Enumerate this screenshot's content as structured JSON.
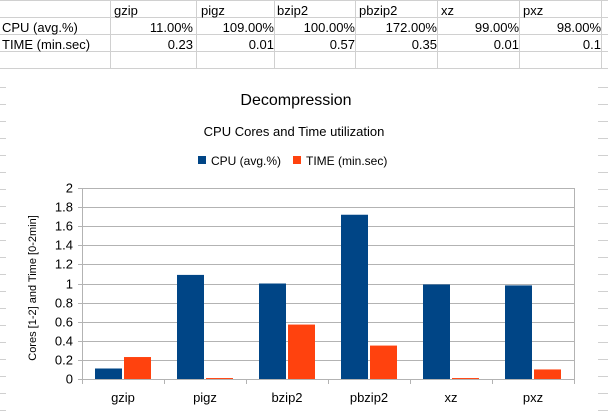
{
  "table": {
    "columns": [
      "gzip",
      "pigz",
      "bzip2",
      "pbzip2",
      "xz",
      "pxz"
    ],
    "rows": [
      {
        "label": "CPU (avg.%)",
        "values": [
          "11.00%",
          "109.00%",
          "100.00%",
          "172.00%",
          "99.00%",
          "98.00%"
        ]
      },
      {
        "label": "TIME (min.sec)",
        "values": [
          "0.23",
          "0.01",
          "0.57",
          "0.35",
          "0.01",
          "0.1"
        ]
      }
    ]
  },
  "chart_data": {
    "type": "bar",
    "title": "Decompression",
    "subtitle": "CPU Cores and Time utilization",
    "ylabel": "Cores [1-2] and Time [0-2min]",
    "xlabel": "",
    "categories": [
      "gzip",
      "pigz",
      "bzip2",
      "pbzip2",
      "xz",
      "pxz"
    ],
    "series": [
      {
        "name": "CPU (avg.%)",
        "color": "#004586",
        "values": [
          0.11,
          1.09,
          1.0,
          1.72,
          0.99,
          0.98
        ]
      },
      {
        "name": "TIME (min.sec)",
        "color": "#ff420e",
        "values": [
          0.23,
          0.01,
          0.57,
          0.35,
          0.01,
          0.1
        ]
      }
    ],
    "ylim": [
      0,
      2
    ],
    "yticks": [
      "0",
      "0.2",
      "0.4",
      "0.6",
      "0.8",
      "1",
      "1.2",
      "1.4",
      "1.6",
      "1.8",
      "2"
    ],
    "legend_position": "top",
    "grid": true
  }
}
